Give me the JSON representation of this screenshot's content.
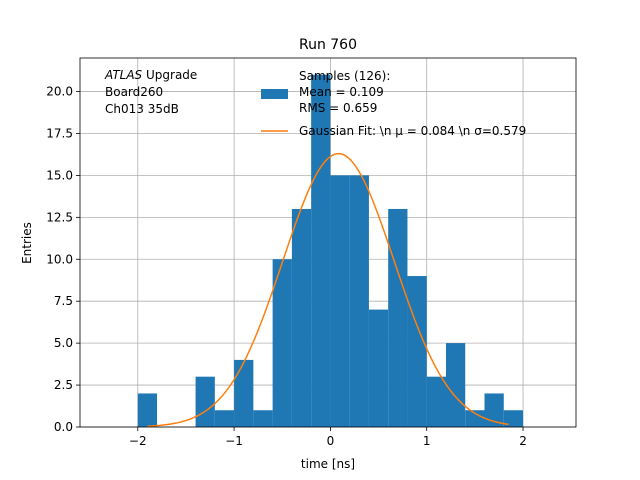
{
  "chart_data": {
    "type": "bar",
    "title": "Run 760",
    "xlabel": "time [ns]",
    "ylabel": "Entries",
    "xlim": [
      -2.6,
      2.55
    ],
    "ylim": [
      0,
      22
    ],
    "grid": true,
    "x_ticks": [
      -2,
      -1,
      0,
      1,
      2
    ],
    "x_tick_labels": [
      "−2",
      "−1",
      "0",
      "1",
      "2"
    ],
    "y_ticks": [
      0,
      2.5,
      5,
      7.5,
      10,
      12.5,
      15,
      17.5,
      20
    ],
    "y_tick_labels": [
      "0.0",
      "2.5",
      "5.0",
      "7.5",
      "10.0",
      "12.5",
      "15.0",
      "17.5",
      "20.0"
    ],
    "histogram": {
      "bin_edges": [
        -2.0,
        -1.8,
        -1.6,
        -1.4,
        -1.2,
        -1.0,
        -0.8,
        -0.6,
        -0.4,
        -0.2,
        0.0,
        0.2,
        0.4,
        0.6,
        0.8,
        1.0,
        1.2,
        1.4,
        1.6,
        1.8
      ],
      "counts": [
        2,
        0,
        0,
        3,
        1,
        4,
        1,
        10,
        13,
        21,
        15,
        15,
        7,
        13,
        9,
        3,
        5,
        1,
        2,
        1
      ],
      "color": "#1f77b4"
    },
    "fit": {
      "type": "gaussian",
      "amplitude": 16.3,
      "mu": 0.084,
      "sigma": 0.579,
      "x_range": [
        -1.9,
        1.85
      ],
      "color": "#ff7f0e"
    },
    "legend": {
      "placement": "top-right",
      "entries": [
        {
          "kind": "patch",
          "color": "#1f77b4",
          "lines": [
            "Samples (126):",
            " Mean = 0.109",
            " RMS = 0.659"
          ]
        },
        {
          "kind": "line",
          "color": "#ff7f0e",
          "lines": [
            "Gaussian Fit: \\n μ = 0.084 \\n σ=0.579"
          ]
        }
      ]
    },
    "annotation": {
      "lines": [
        {
          "italic": "ATLAS",
          "rest": " Upgrade"
        },
        {
          "italic": "",
          "rest": " Board260"
        },
        {
          "italic": "",
          "rest": " Ch013 35dB"
        }
      ]
    }
  }
}
